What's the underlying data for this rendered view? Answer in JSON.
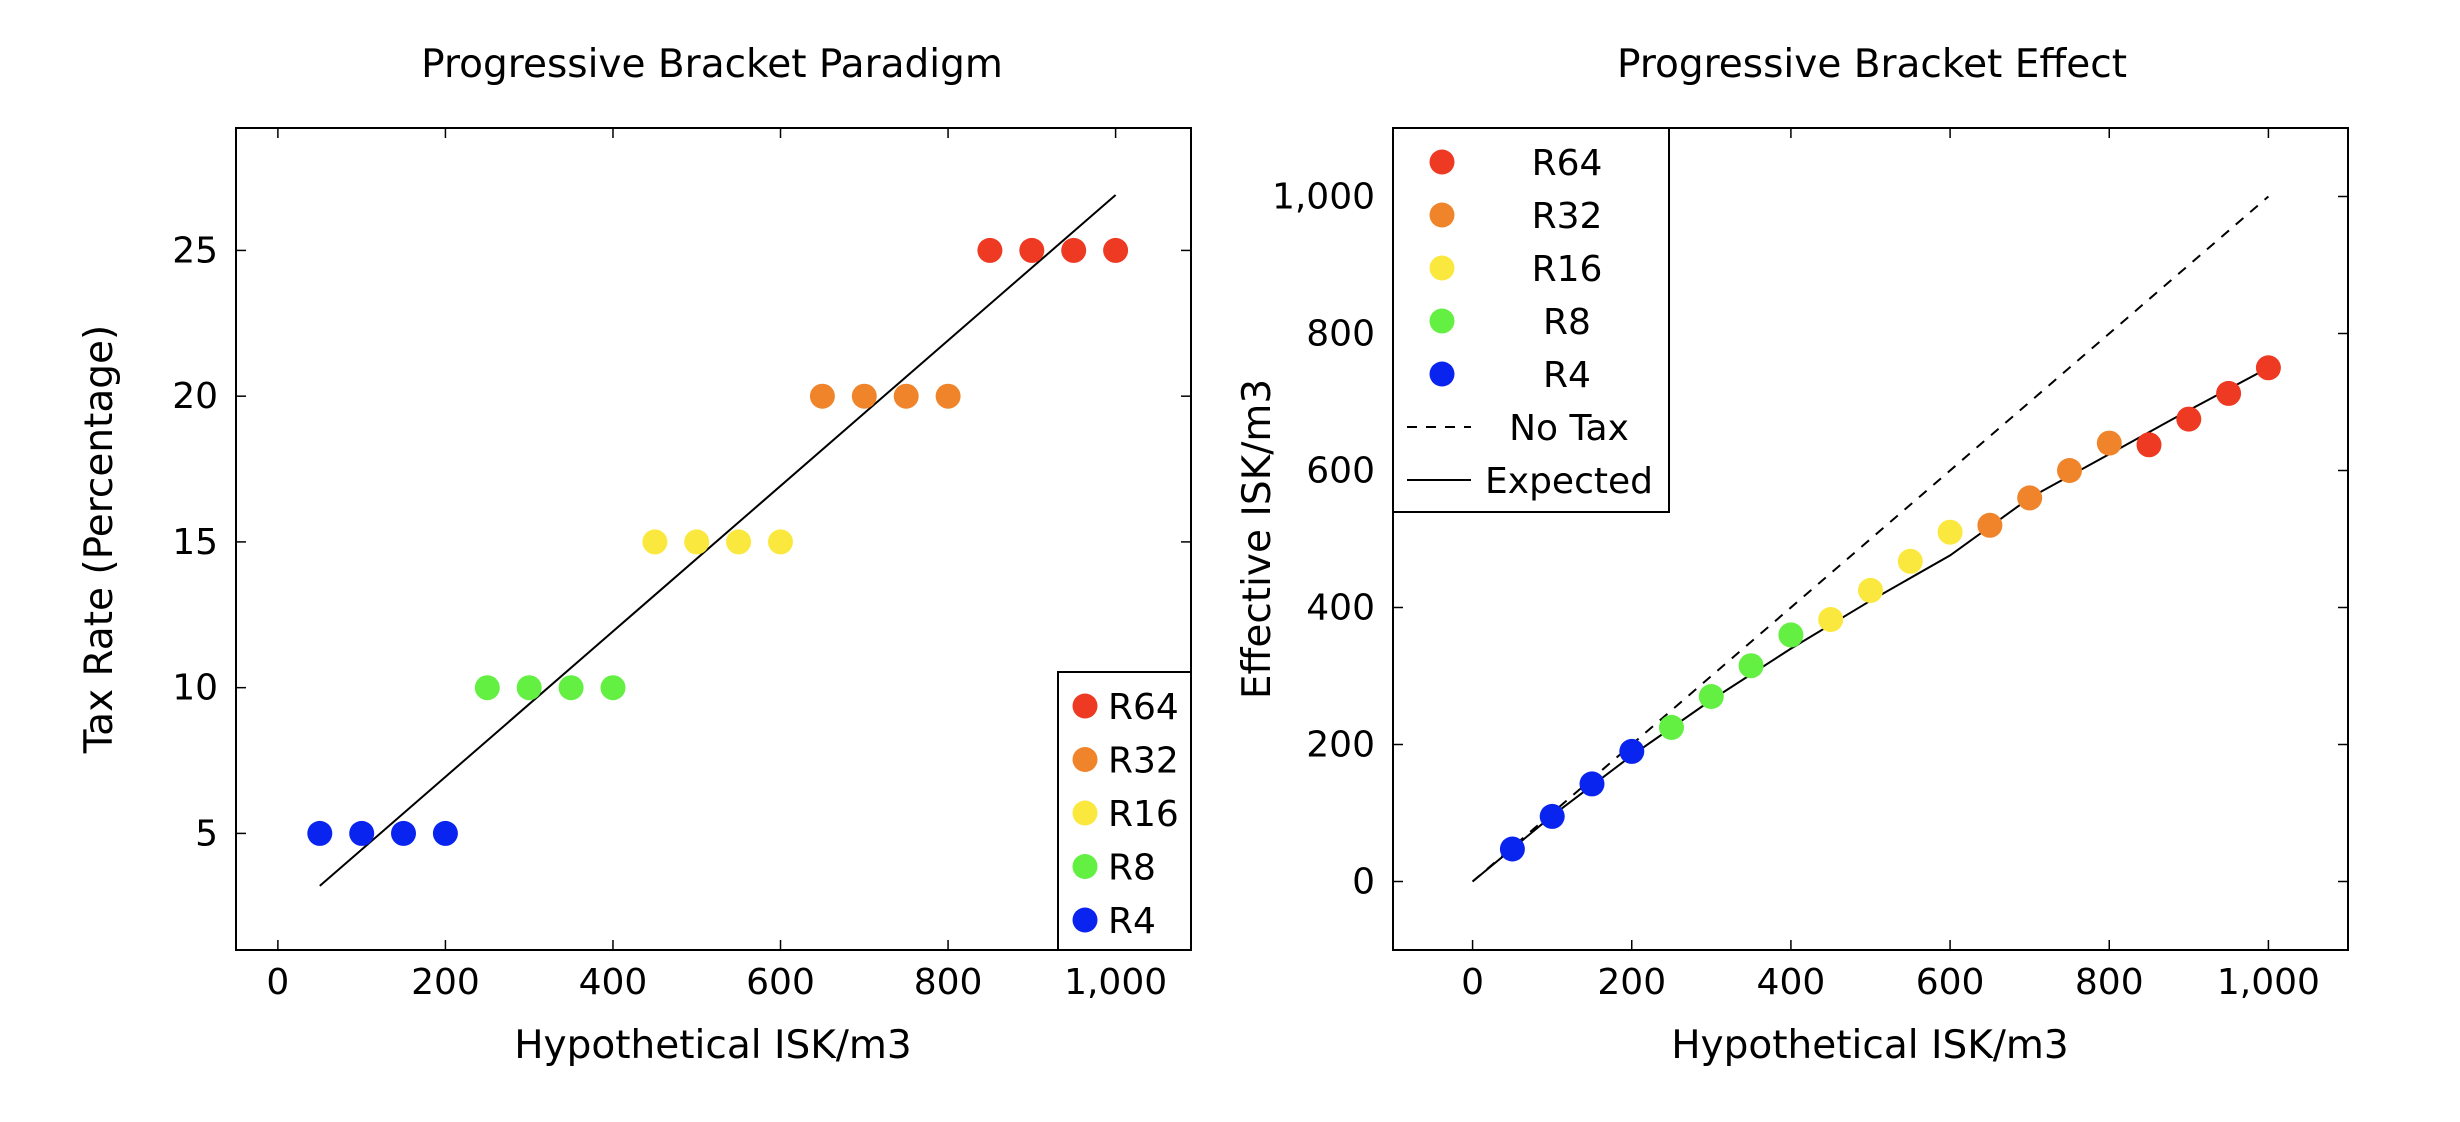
{
  "chart_data": [
    {
      "type": "scatter",
      "title": "Progressive Bracket Paradigm",
      "xlabel": "Hypothetical ISK/m3",
      "ylabel": "Tax Rate (Percentage)",
      "xlim": [
        -50,
        1090
      ],
      "ylim": [
        1,
        29.2
      ],
      "xticks": [
        0,
        200,
        400,
        600,
        800,
        1000
      ],
      "xtick_labels": [
        "0",
        "200",
        "400",
        "600",
        "800",
        "1,000"
      ],
      "yticks": [
        5,
        10,
        15,
        20,
        25
      ],
      "ytick_labels": [
        "5",
        "10",
        "15",
        "20",
        "25"
      ],
      "grid": false,
      "legend_position": "bottom-right",
      "series": [
        {
          "name": "R64",
          "color": "#ee3a22",
          "x": [
            850,
            900,
            950,
            1000
          ],
          "y": [
            25,
            25,
            25,
            25
          ]
        },
        {
          "name": "R32",
          "color": "#f0842a",
          "x": [
            650,
            700,
            750,
            800
          ],
          "y": [
            20,
            20,
            20,
            20
          ]
        },
        {
          "name": "R16",
          "color": "#fbe83e",
          "x": [
            450,
            500,
            550,
            600
          ],
          "y": [
            15,
            15,
            15,
            15
          ]
        },
        {
          "name": "R8",
          "color": "#63f043",
          "x": [
            250,
            300,
            350,
            400
          ],
          "y": [
            10,
            10,
            10,
            10
          ]
        },
        {
          "name": "R4",
          "color": "#0a24f0",
          "x": [
            50,
            100,
            150,
            200
          ],
          "y": [
            5,
            5,
            5,
            5
          ]
        }
      ],
      "lines": [
        {
          "color": "#000000",
          "dash": false,
          "x": [
            50,
            1000
          ],
          "y": [
            3.2,
            26.9
          ]
        }
      ]
    },
    {
      "type": "scatter",
      "title": "Progressive Bracket Effect",
      "xlabel": "Hypothetical ISK/m3",
      "ylabel": "Effective ISK/m3",
      "xlim": [
        -100,
        1100
      ],
      "ylim": [
        -100,
        1100
      ],
      "xticks": [
        0,
        200,
        400,
        600,
        800,
        1000
      ],
      "xtick_labels": [
        "0",
        "200",
        "400",
        "600",
        "800",
        "1,000"
      ],
      "yticks": [
        0,
        200,
        400,
        600,
        800,
        1000
      ],
      "ytick_labels": [
        "0",
        "200",
        "400",
        "600",
        "800",
        "1,000"
      ],
      "grid": false,
      "legend_position": "top-left",
      "series": [
        {
          "name": "R64",
          "color": "#ee3a22",
          "x": [
            850,
            900,
            950,
            1000
          ],
          "y": [
            637.5,
            675,
            712.5,
            750
          ]
        },
        {
          "name": "R32",
          "color": "#f0842a",
          "x": [
            650,
            700,
            750,
            800
          ],
          "y": [
            520,
            560,
            600,
            640
          ]
        },
        {
          "name": "R16",
          "color": "#fbe83e",
          "x": [
            450,
            500,
            550,
            600
          ],
          "y": [
            382.5,
            425,
            467.5,
            510
          ]
        },
        {
          "name": "R8",
          "color": "#63f043",
          "x": [
            250,
            300,
            350,
            400
          ],
          "y": [
            225,
            270,
            315,
            360
          ]
        },
        {
          "name": "R4",
          "color": "#0a24f0",
          "x": [
            50,
            100,
            150,
            200
          ],
          "y": [
            47.5,
            95,
            142.5,
            190
          ]
        }
      ],
      "lines": [
        {
          "name": "No Tax",
          "color": "#000000",
          "dash": true,
          "x": [
            0,
            1000
          ],
          "y": [
            0,
            1000
          ]
        },
        {
          "name": "Expected",
          "color": "#000000",
          "dash": false,
          "x": [
            0,
            100,
            200,
            300,
            400,
            500,
            600,
            700,
            800,
            900,
            1000
          ],
          "y": [
            0,
            96,
            184,
            265,
            340,
            410,
            476,
            560,
            624,
            688,
            750
          ]
        }
      ]
    }
  ]
}
